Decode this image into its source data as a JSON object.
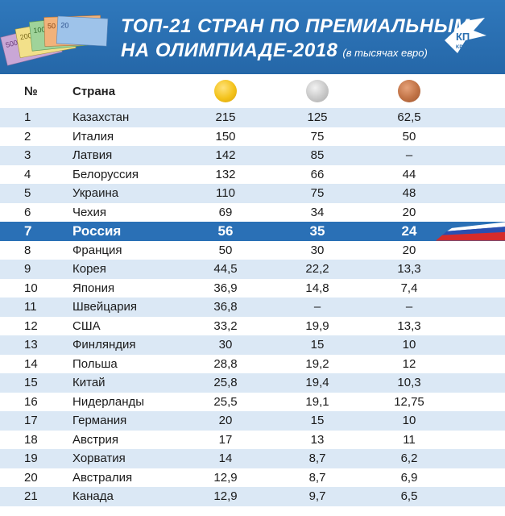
{
  "header": {
    "title_line1": "ТОП-21 СТРАН ПО ПРЕМИАЛЬНЫМ",
    "title_line2": "НА ОЛИМПИАДЕ-2018",
    "subtitle": "(в тысячах евро)",
    "logo_text": "КП",
    "logo_sub": "KP.RU",
    "money_notes": [
      "500",
      "200",
      "100",
      "50",
      "20"
    ]
  },
  "columns": {
    "rank": "№",
    "country": "Страна",
    "gold_icon": "gold-medal-icon",
    "silver_icon": "silver-medal-icon",
    "bronze_icon": "bronze-medal-icon"
  },
  "colors": {
    "header_bg": "#2b6fb0",
    "row_alt": "#dbe8f5",
    "highlight": "#2a70b6",
    "gold": "#f3c21a",
    "silver": "#c8c8c8",
    "bronze": "#c07245"
  },
  "chart_data": {
    "type": "table",
    "title": "ТОП-21 СТРАН ПО ПРЕМИАЛЬНЫМ НА ОЛИМПИАДЕ-2018",
    "subtitle": "(в тысячах евро)",
    "highlighted_rank": "7",
    "rows": [
      {
        "rank": "1",
        "country": "Казахстан",
        "gold": "215",
        "silver": "125",
        "bronze": "62,5"
      },
      {
        "rank": "2",
        "country": "Италия",
        "gold": "150",
        "silver": "75",
        "bronze": "50"
      },
      {
        "rank": "3",
        "country": "Латвия",
        "gold": "142",
        "silver": "85",
        "bronze": "–"
      },
      {
        "rank": "4",
        "country": "Белоруссия",
        "gold": "132",
        "silver": "66",
        "bronze": "44"
      },
      {
        "rank": "5",
        "country": "Украина",
        "gold": "110",
        "silver": "75",
        "bronze": "48"
      },
      {
        "rank": "6",
        "country": "Чехия",
        "gold": "69",
        "silver": "34",
        "bronze": "20"
      },
      {
        "rank": "7",
        "country": "Россия",
        "gold": "56",
        "silver": "35",
        "bronze": "24"
      },
      {
        "rank": "8",
        "country": "Франция",
        "gold": "50",
        "silver": "30",
        "bronze": "20"
      },
      {
        "rank": "9",
        "country": "Корея",
        "gold": "44,5",
        "silver": "22,2",
        "bronze": "13,3"
      },
      {
        "rank": "10",
        "country": "Япония",
        "gold": "36,9",
        "silver": "14,8",
        "bronze": "7,4"
      },
      {
        "rank": "11",
        "country": "Швейцария",
        "gold": "36,8",
        "silver": "–",
        "bronze": "–"
      },
      {
        "rank": "12",
        "country": "США",
        "gold": "33,2",
        "silver": "19,9",
        "bronze": "13,3"
      },
      {
        "rank": "13",
        "country": "Финляндия",
        "gold": "30",
        "silver": "15",
        "bronze": "10"
      },
      {
        "rank": "14",
        "country": "Польша",
        "gold": "28,8",
        "silver": "19,2",
        "bronze": "12"
      },
      {
        "rank": "15",
        "country": "Китай",
        "gold": "25,8",
        "silver": "19,4",
        "bronze": "10,3"
      },
      {
        "rank": "16",
        "country": "Нидерланды",
        "gold": "25,5",
        "silver": "19,1",
        "bronze": "12,75"
      },
      {
        "rank": "17",
        "country": "Германия",
        "gold": "20",
        "silver": "15",
        "bronze": "10"
      },
      {
        "rank": "18",
        "country": "Австрия",
        "gold": "17",
        "silver": "13",
        "bronze": "11"
      },
      {
        "rank": "19",
        "country": "Хорватия",
        "gold": "14",
        "silver": "8,7",
        "bronze": "6,2"
      },
      {
        "rank": "20",
        "country": "Австралия",
        "gold": "12,9",
        "silver": "8,7",
        "bronze": "6,9"
      },
      {
        "rank": "21",
        "country": "Канада",
        "gold": "12,9",
        "silver": "9,7",
        "bronze": "6,5"
      }
    ]
  }
}
